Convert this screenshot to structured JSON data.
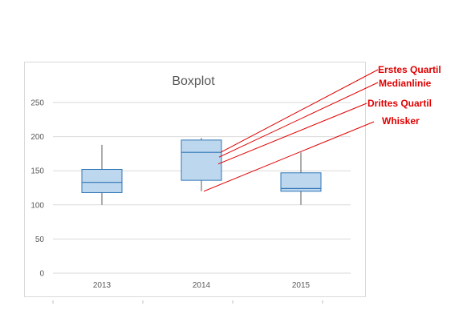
{
  "chart_data": {
    "type": "boxplot",
    "title": "Boxplot",
    "xlabel": "",
    "ylabel": "",
    "ylim": [
      0,
      250
    ],
    "yticks": [
      0,
      50,
      100,
      150,
      200,
      250
    ],
    "ytick_labels": [
      "0",
      "50",
      "100",
      "150",
      "200",
      "250"
    ],
    "grid": true,
    "categories": [
      "2013",
      "2014",
      "2015"
    ],
    "boxes": [
      {
        "label": "2013",
        "min": 100,
        "q1": 118,
        "median": 133,
        "q3": 152,
        "max": 188
      },
      {
        "label": "2014",
        "min": 120,
        "q1": 136,
        "median": 177,
        "q3": 195,
        "max": 198
      },
      {
        "label": "2015",
        "min": 100,
        "q1": 120,
        "median": 124,
        "q3": 147,
        "max": 177
      }
    ],
    "box_fill": "#bdd7ee",
    "box_stroke": "#2e75b6",
    "annotations": [
      {
        "text": "Erstes Quartil",
        "category": "2014",
        "value": 177
      },
      {
        "text": "Medianlinie",
        "category": "2014",
        "value": 170
      },
      {
        "text": "Drittes Quartil",
        "category": "2014",
        "value": 160
      },
      {
        "text": "Whisker",
        "category": "2014",
        "value": 120
      }
    ],
    "annotation_color": "#e00000"
  }
}
